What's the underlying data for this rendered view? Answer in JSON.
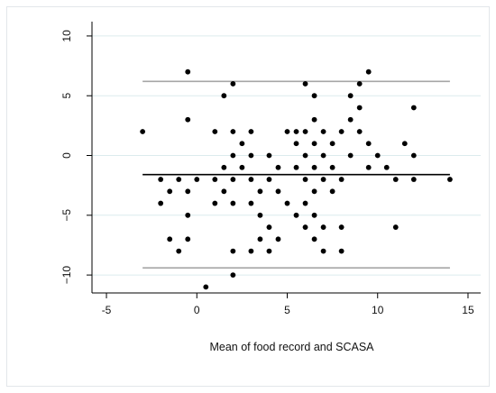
{
  "chart_data": {
    "type": "scatter",
    "title": "",
    "xlabel": "Mean of food record and SCASA",
    "ylabel": "",
    "xlim": [
      -5.8,
      15.7
    ],
    "ylim": [
      -11.5,
      11.2
    ],
    "xticks": [
      -5,
      0,
      5,
      10,
      15
    ],
    "yticks": [
      -10,
      -5,
      0,
      5,
      10
    ],
    "x_tick_labels": [
      "-5",
      "0",
      "5",
      "10",
      "15"
    ],
    "y_tick_labels": [
      "−10",
      "−5",
      "0",
      "5",
      "10"
    ],
    "grid": {
      "y": true,
      "x": false,
      "color": "#dcebed"
    },
    "point_color": "#000000",
    "reference_lines": [
      {
        "name": "upper limit",
        "y": 6.2,
        "x_range": [
          -3,
          14
        ],
        "color": "#a6a6a6"
      },
      {
        "name": "mean difference",
        "y": -1.6,
        "x_range": [
          -3,
          14
        ],
        "color": "#000000"
      },
      {
        "name": "lower limit",
        "y": -9.4,
        "x_range": [
          -3,
          14
        ],
        "color": "#a6a6a6"
      }
    ],
    "points": [
      [
        -3,
        2
      ],
      [
        -2,
        -2
      ],
      [
        -2,
        -4
      ],
      [
        -1.5,
        -3
      ],
      [
        -1.5,
        -7
      ],
      [
        -1,
        -2
      ],
      [
        -1,
        -8
      ],
      [
        -0.5,
        7
      ],
      [
        -0.5,
        3
      ],
      [
        -0.5,
        -3
      ],
      [
        -0.5,
        -5
      ],
      [
        -0.5,
        -7
      ],
      [
        0,
        -2
      ],
      [
        0.5,
        -11
      ],
      [
        1,
        2
      ],
      [
        1,
        -2
      ],
      [
        1,
        -4
      ],
      [
        1.5,
        5
      ],
      [
        1.5,
        -1
      ],
      [
        1.5,
        -3
      ],
      [
        2,
        6
      ],
      [
        2,
        2
      ],
      [
        2,
        0
      ],
      [
        2,
        -2
      ],
      [
        2,
        -4
      ],
      [
        2,
        -8
      ],
      [
        2,
        -10
      ],
      [
        2.5,
        1
      ],
      [
        2.5,
        -1
      ],
      [
        3,
        2
      ],
      [
        3,
        0
      ],
      [
        3,
        -2
      ],
      [
        3,
        -4
      ],
      [
        3,
        -8
      ],
      [
        3.5,
        -3
      ],
      [
        3.5,
        -5
      ],
      [
        3.5,
        -7
      ],
      [
        4,
        0
      ],
      [
        4,
        -2
      ],
      [
        4,
        -6
      ],
      [
        4,
        -8
      ],
      [
        4.5,
        -1
      ],
      [
        4.5,
        -3
      ],
      [
        4.5,
        -7
      ],
      [
        5,
        2
      ],
      [
        5,
        -4
      ],
      [
        5.5,
        2
      ],
      [
        5.5,
        1
      ],
      [
        5.5,
        -1
      ],
      [
        5.5,
        -5
      ],
      [
        6,
        6
      ],
      [
        6,
        2
      ],
      [
        6,
        0
      ],
      [
        6,
        -2
      ],
      [
        6,
        -4
      ],
      [
        6,
        -6
      ],
      [
        6.5,
        5
      ],
      [
        6.5,
        3
      ],
      [
        6.5,
        1
      ],
      [
        6.5,
        -1
      ],
      [
        6.5,
        -3
      ],
      [
        6.5,
        -5
      ],
      [
        6.5,
        -7
      ],
      [
        7,
        2
      ],
      [
        7,
        0
      ],
      [
        7,
        -2
      ],
      [
        7,
        -6
      ],
      [
        7,
        -8
      ],
      [
        7.5,
        1
      ],
      [
        7.5,
        -1
      ],
      [
        7.5,
        -3
      ],
      [
        8,
        2
      ],
      [
        8,
        -2
      ],
      [
        8,
        -6
      ],
      [
        8,
        -8
      ],
      [
        8.5,
        5
      ],
      [
        8.5,
        3
      ],
      [
        8.5,
        0
      ],
      [
        9,
        6
      ],
      [
        9,
        4
      ],
      [
        9,
        2
      ],
      [
        9.5,
        7
      ],
      [
        9.5,
        1
      ],
      [
        9.5,
        -1
      ],
      [
        10,
        0
      ],
      [
        10.5,
        -1
      ],
      [
        11,
        -2
      ],
      [
        11,
        -6
      ],
      [
        11.5,
        1
      ],
      [
        12,
        4
      ],
      [
        12,
        0
      ],
      [
        12,
        -2
      ],
      [
        14,
        -2
      ]
    ]
  }
}
